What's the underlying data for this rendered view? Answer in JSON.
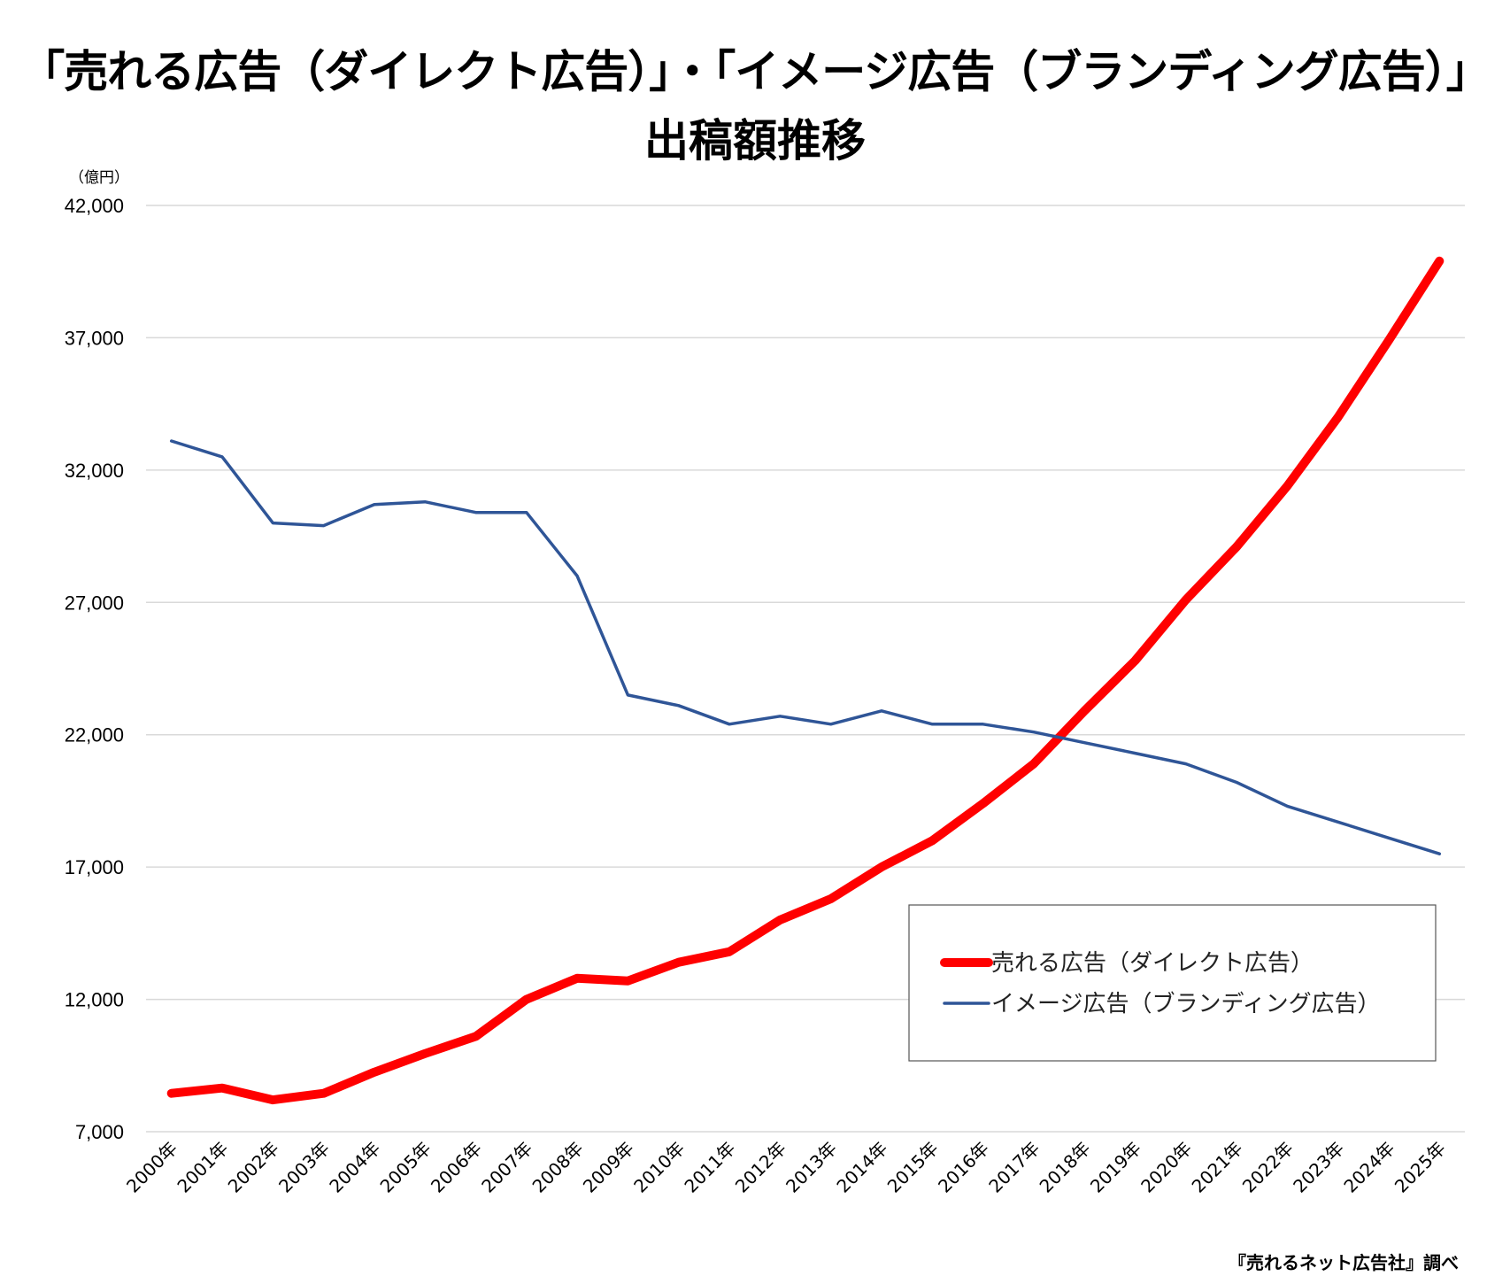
{
  "title_line1": "「売れる広告（ダイレクト広告）」・「イメージ広告（ブランディング広告）」",
  "title_line2": "出稿額推移",
  "source": "『売れるネット広告社』調べ",
  "chart_data": {
    "type": "line",
    "unit_label": "（億円）",
    "x": [
      "2000年",
      "2001年",
      "2002年",
      "2003年",
      "2004年",
      "2005年",
      "2006年",
      "2007年",
      "2008年",
      "2009年",
      "2010年",
      "2011年",
      "2012年",
      "2013年",
      "2014年",
      "2015年",
      "2016年",
      "2017年",
      "2018年",
      "2019年",
      "2020年",
      "2021年",
      "2022年",
      "2023年",
      "2024年",
      "2025年"
    ],
    "ylim": [
      7000,
      42000
    ],
    "yticks": [
      7000,
      12000,
      17000,
      22000,
      27000,
      32000,
      37000,
      42000
    ],
    "ytick_labels": [
      "7,000",
      "12,000",
      "17,000",
      "22,000",
      "27,000",
      "32,000",
      "37,000",
      "42,000"
    ],
    "grid": true,
    "legend_position": "lower-right",
    "series": [
      {
        "name": "売れる広告（ダイレクト広告）",
        "color": "#ff0000",
        "values": [
          8450,
          8650,
          8200,
          8450,
          9250,
          9950,
          10600,
          12000,
          12800,
          12700,
          13400,
          13800,
          15000,
          15800,
          17000,
          18000,
          19400,
          20900,
          22900,
          24800,
          27100,
          29100,
          31400,
          34000,
          36900,
          39900
        ]
      },
      {
        "name": "イメージ広告（ブランディング広告）",
        "color": "#2f5597",
        "values": [
          33100,
          32500,
          30000,
          29900,
          30700,
          30800,
          30400,
          30400,
          28000,
          23500,
          23100,
          22400,
          22700,
          22400,
          22900,
          22400,
          22400,
          22100,
          21700,
          21300,
          20900,
          20200,
          19300,
          18700,
          18100,
          17500
        ]
      }
    ]
  }
}
